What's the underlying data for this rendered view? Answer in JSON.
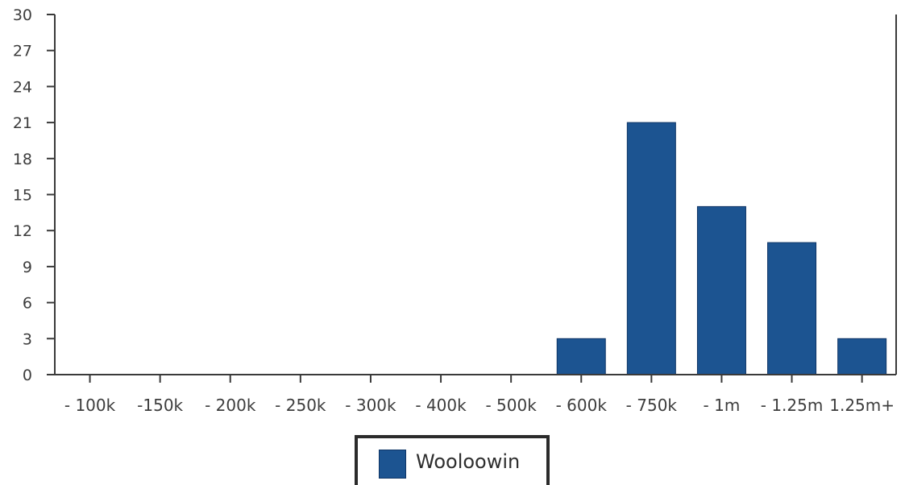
{
  "chart_data": {
    "type": "bar",
    "categories": [
      "- 100k",
      "-150k",
      "- 200k",
      "- 250k",
      "- 300k",
      "- 400k",
      "- 500k",
      "- 600k",
      "- 750k",
      "- 1m",
      "- 1.25m",
      "1.25m+"
    ],
    "series": [
      {
        "name": "Wooloowin",
        "values": [
          0,
          0,
          0,
          0,
          0,
          0,
          0,
          3,
          21,
          14,
          11,
          3
        ]
      }
    ],
    "ylim": [
      0,
      30
    ],
    "yticks": [
      0,
      3,
      6,
      9,
      12,
      15,
      18,
      21,
      24,
      27,
      30
    ],
    "grid": false,
    "legend_position": "bottom-center"
  },
  "colors": {
    "bar": "#1c5491",
    "bar_edge": "#0f3566",
    "axis": "#3a3a3a",
    "text": "#3d3d3d"
  }
}
